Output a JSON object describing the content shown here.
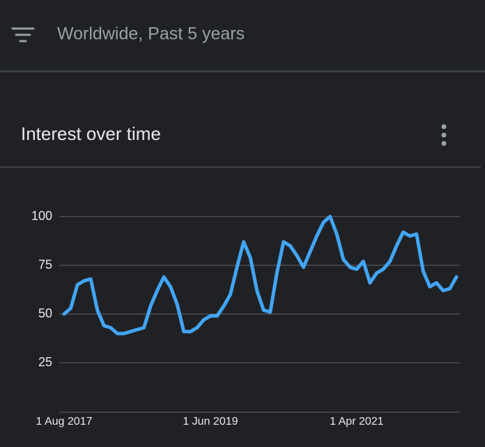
{
  "header": {
    "title": "Worldwide, Past 5 years"
  },
  "card": {
    "title": "Interest over time"
  },
  "chart_data": {
    "type": "line",
    "categories": [
      "1 Aug 2017",
      null,
      null,
      null,
      null,
      null,
      null,
      null,
      null,
      null,
      null,
      null,
      null,
      null,
      null,
      null,
      null,
      null,
      null,
      null,
      null,
      null,
      "1 Jun 2019",
      null,
      null,
      null,
      null,
      null,
      null,
      null,
      null,
      null,
      null,
      null,
      null,
      null,
      null,
      null,
      null,
      null,
      null,
      null,
      null,
      null,
      "1 Apr 2021",
      null,
      null,
      null,
      null,
      null,
      null,
      null,
      null,
      null,
      null,
      null,
      null,
      null,
      null,
      null
    ],
    "series": [
      {
        "color": "#42a5f5",
        "values": [
          50,
          53,
          65,
          67,
          68,
          52,
          44,
          43,
          40,
          40,
          41,
          42,
          43,
          54,
          62,
          69,
          64,
          55,
          41,
          41,
          43,
          47,
          49,
          49,
          54,
          60,
          74,
          87,
          79,
          62,
          52,
          51,
          71,
          87,
          85,
          80,
          74,
          82,
          90,
          97,
          100,
          91,
          78,
          74,
          73,
          77,
          66,
          71,
          73,
          77,
          85,
          92,
          90,
          91,
          72,
          64,
          66,
          62,
          63,
          69
        ]
      }
    ],
    "ylim": [
      0,
      100
    ],
    "yticks": [
      25,
      50,
      75,
      100
    ],
    "grid": true
  }
}
